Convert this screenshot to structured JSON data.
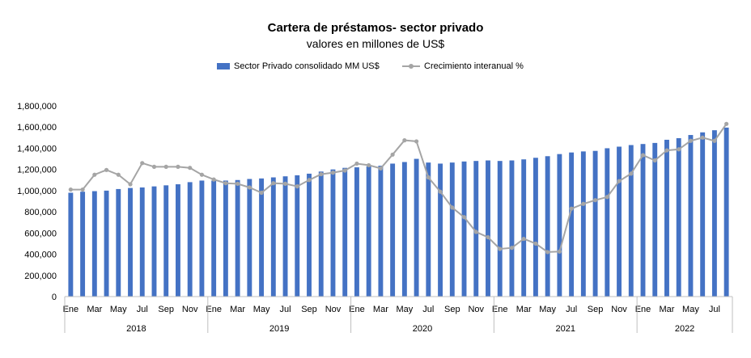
{
  "chart_data": {
    "type": "bar",
    "title": "Cartera de préstamos- sector privado",
    "subtitle": "valores en millones de US$",
    "xlabel": "",
    "ylabel": "",
    "ylim": [
      0,
      1800000
    ],
    "yticks": [
      "1,800,000",
      "1,600,000",
      "1,400,000",
      "1,200,000",
      "1,000,000",
      "800,000",
      "600,000",
      "400,000",
      "200,000",
      "0"
    ],
    "grid": false,
    "legend_position": "top",
    "month_labels": [
      "Ene",
      "Mar",
      "May",
      "Jul",
      "Sep",
      "Nov"
    ],
    "years": [
      "2018",
      "2019",
      "2020",
      "2021",
      "2022"
    ],
    "categories": [
      "2018-01",
      "2018-02",
      "2018-03",
      "2018-04",
      "2018-05",
      "2018-06",
      "2018-07",
      "2018-08",
      "2018-09",
      "2018-10",
      "2018-11",
      "2018-12",
      "2019-01",
      "2019-02",
      "2019-03",
      "2019-04",
      "2019-05",
      "2019-06",
      "2019-07",
      "2019-08",
      "2019-09",
      "2019-10",
      "2019-11",
      "2019-12",
      "2020-01",
      "2020-02",
      "2020-03",
      "2020-04",
      "2020-05",
      "2020-06",
      "2020-07",
      "2020-08",
      "2020-09",
      "2020-10",
      "2020-11",
      "2020-12",
      "2021-01",
      "2021-02",
      "2021-03",
      "2021-04",
      "2021-05",
      "2021-06",
      "2021-07",
      "2021-08",
      "2021-09",
      "2021-10",
      "2021-11",
      "2021-12",
      "2022-01",
      "2022-02",
      "2022-03",
      "2022-04",
      "2022-05",
      "2022-06",
      "2022-07",
      "2022-08"
    ],
    "series": [
      {
        "name": "Sector Privado consolidado MM US$",
        "kind": "bar",
        "color": "#4472c4",
        "values": [
          980000,
          990000,
          995000,
          1000000,
          1015000,
          1025000,
          1030000,
          1040000,
          1050000,
          1060000,
          1080000,
          1095000,
          1095000,
          1095000,
          1100000,
          1110000,
          1115000,
          1125000,
          1135000,
          1145000,
          1160000,
          1180000,
          1200000,
          1215000,
          1220000,
          1230000,
          1235000,
          1255000,
          1270000,
          1300000,
          1265000,
          1255000,
          1265000,
          1275000,
          1280000,
          1285000,
          1280000,
          1285000,
          1295000,
          1310000,
          1325000,
          1345000,
          1360000,
          1370000,
          1375000,
          1400000,
          1415000,
          1430000,
          1440000,
          1450000,
          1480000,
          1495000,
          1525000,
          1550000,
          1570000,
          1595000
        ]
      },
      {
        "name": "Crecimiento interanual %",
        "kind": "line",
        "color": "#a5a5a5",
        "values": [
          1010000,
          1010000,
          1150000,
          1195000,
          1150000,
          1060000,
          1260000,
          1225000,
          1225000,
          1225000,
          1215000,
          1150000,
          1105000,
          1070000,
          1065000,
          1030000,
          980000,
          1070000,
          1065000,
          1040000,
          1100000,
          1155000,
          1170000,
          1190000,
          1255000,
          1240000,
          1210000,
          1340000,
          1475000,
          1465000,
          1125000,
          990000,
          840000,
          750000,
          610000,
          560000,
          450000,
          460000,
          545000,
          500000,
          420000,
          425000,
          830000,
          875000,
          910000,
          940000,
          1090000,
          1160000,
          1335000,
          1285000,
          1380000,
          1390000,
          1470000,
          1500000,
          1470000,
          1630000
        ]
      }
    ]
  }
}
